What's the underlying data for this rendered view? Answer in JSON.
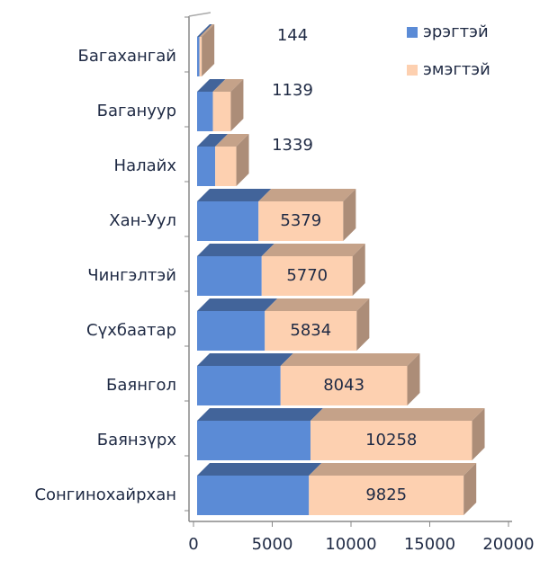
{
  "chart_data": {
    "type": "bar3d_stacked_horizontal",
    "categories": [
      "Багахангай",
      "Багануур",
      "Налайх",
      "Хан-Уул",
      "Чингэлтэй",
      "Сүхбаатар",
      "Баянгол",
      "Баянзүрх",
      "Сонгинохайрхан"
    ],
    "series": [
      {
        "name": "эрэгтэй",
        "color": "#5b8bd6",
        "values": [
          150,
          1000,
          1150,
          3900,
          4100,
          4300,
          5300,
          7200,
          7100
        ]
      },
      {
        "name": "эмэгтэй",
        "color": "#fdd0b0",
        "values": [
          144,
          1139,
          1339,
          5379,
          5770,
          5834,
          8043,
          10258,
          9825
        ],
        "data_labels": true
      }
    ],
    "xlim": [
      0,
      20000
    ],
    "xticks": [
      0,
      5000,
      10000,
      15000,
      20000
    ],
    "legend": "top-right"
  }
}
